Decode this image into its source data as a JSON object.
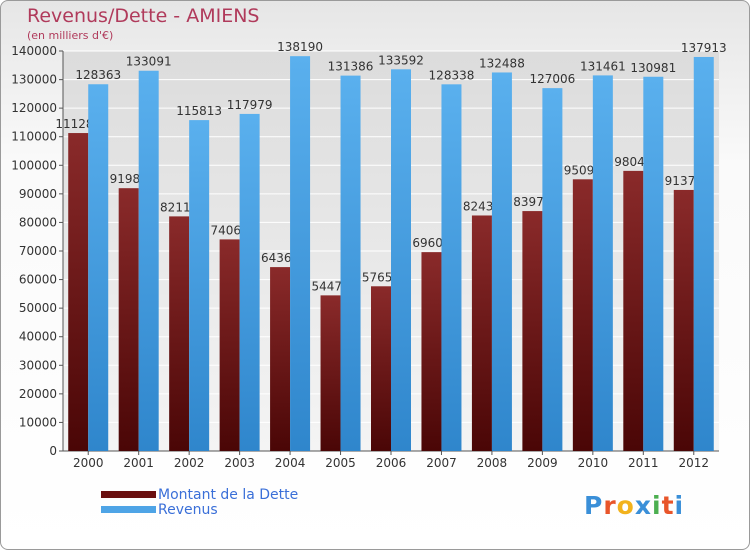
{
  "header": {
    "title": "Revenus/Dette - AMIENS",
    "subtitle": "(en milliers d'€)"
  },
  "legend": {
    "debt_label": "Montant de la Dette",
    "revenue_label": "Revenus"
  },
  "logo": {
    "text": "Proxiti",
    "colors": [
      "#3a8fd8",
      "#e8552a",
      "#f2b21c",
      "#3a8fd8",
      "#4caf50",
      "#e8552a",
      "#3a8fd8"
    ]
  },
  "colors": {
    "debt": "#7a1a1a",
    "revenue": "#4ea4e6",
    "text_accent": "#b03a5b",
    "legend_text": "#3a6fd8"
  },
  "chart_data": {
    "type": "bar",
    "title": "Revenus/Dette - AMIENS",
    "subtitle": "(en milliers d'€)",
    "categories": [
      "2000",
      "2001",
      "2002",
      "2003",
      "2004",
      "2005",
      "2006",
      "2007",
      "2008",
      "2009",
      "2010",
      "2011",
      "2012"
    ],
    "series": [
      {
        "name": "Montant de la Dette",
        "values": [
          111282,
          91982,
          82117,
          74062,
          64362,
          54472,
          57652,
          69602,
          82432,
          83972,
          95092,
          98042,
          91372
        ],
        "labels": [
          "111282",
          "91982",
          "82117",
          "74062",
          "64362",
          "54472",
          "57652",
          "69602",
          "82432",
          "83972",
          "95092",
          "98042",
          "91372"
        ]
      },
      {
        "name": "Revenus",
        "values": [
          128363,
          133091,
          115813,
          117979,
          138190,
          131386,
          133592,
          128338,
          132488,
          127006,
          131461,
          130981,
          137913
        ],
        "labels": [
          "128363",
          "133091",
          "115813",
          "117979",
          "138190",
          "131386",
          "133592",
          "128338",
          "132488",
          "127006",
          "131461",
          "130981",
          "137913"
        ]
      }
    ],
    "ylim": [
      0,
      140000
    ],
    "yticks": [
      0,
      10000,
      20000,
      30000,
      40000,
      50000,
      60000,
      70000,
      80000,
      90000,
      100000,
      110000,
      120000,
      130000,
      140000
    ],
    "grid": true,
    "legend_position": "bottom-left"
  }
}
